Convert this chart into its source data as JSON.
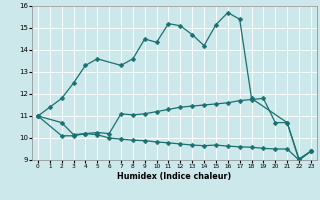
{
  "title": "",
  "xlabel": "Humidex (Indice chaleur)",
  "bg_color": "#cce8ea",
  "line_color": "#1a7070",
  "xlim": [
    -0.5,
    23.5
  ],
  "ylim": [
    9,
    16
  ],
  "xticks": [
    0,
    1,
    2,
    3,
    4,
    5,
    6,
    7,
    8,
    9,
    10,
    11,
    12,
    13,
    14,
    15,
    16,
    17,
    18,
    19,
    20,
    21,
    22,
    23
  ],
  "yticks": [
    9,
    10,
    11,
    12,
    13,
    14,
    15,
    16
  ],
  "curve1": {
    "x": [
      0,
      1,
      2,
      3,
      4,
      5,
      7,
      8,
      9,
      10,
      11,
      12,
      13,
      14,
      15,
      16,
      17,
      18,
      21,
      22,
      23
    ],
    "y": [
      11.0,
      11.4,
      11.8,
      12.5,
      13.3,
      13.6,
      13.3,
      13.6,
      14.5,
      14.35,
      15.2,
      15.1,
      14.7,
      14.2,
      15.15,
      15.7,
      15.4,
      11.8,
      10.7,
      9.0,
      9.4
    ]
  },
  "curve2": {
    "x": [
      0,
      2,
      3,
      4,
      5,
      6,
      7,
      8,
      9,
      10,
      11,
      12,
      13,
      14,
      15,
      16,
      17,
      18,
      19,
      20,
      21,
      22,
      23
    ],
    "y": [
      11.0,
      10.7,
      10.15,
      10.2,
      10.25,
      10.2,
      11.1,
      11.05,
      11.1,
      11.2,
      11.3,
      11.4,
      11.45,
      11.5,
      11.55,
      11.6,
      11.7,
      11.75,
      11.8,
      10.7,
      10.7,
      9.05,
      9.4
    ]
  },
  "curve3": {
    "x": [
      0,
      2,
      3,
      4,
      5,
      6,
      7,
      8,
      9,
      10,
      11,
      12,
      13,
      14,
      15,
      16,
      17,
      18,
      19,
      20,
      21,
      22,
      23
    ],
    "y": [
      11.0,
      10.1,
      10.1,
      10.2,
      10.15,
      10.0,
      9.95,
      9.9,
      9.88,
      9.82,
      9.78,
      9.73,
      9.68,
      9.65,
      9.68,
      9.63,
      9.6,
      9.58,
      9.53,
      9.5,
      9.5,
      9.0,
      9.4
    ]
  },
  "markersize": 2.5,
  "linewidth": 0.9
}
